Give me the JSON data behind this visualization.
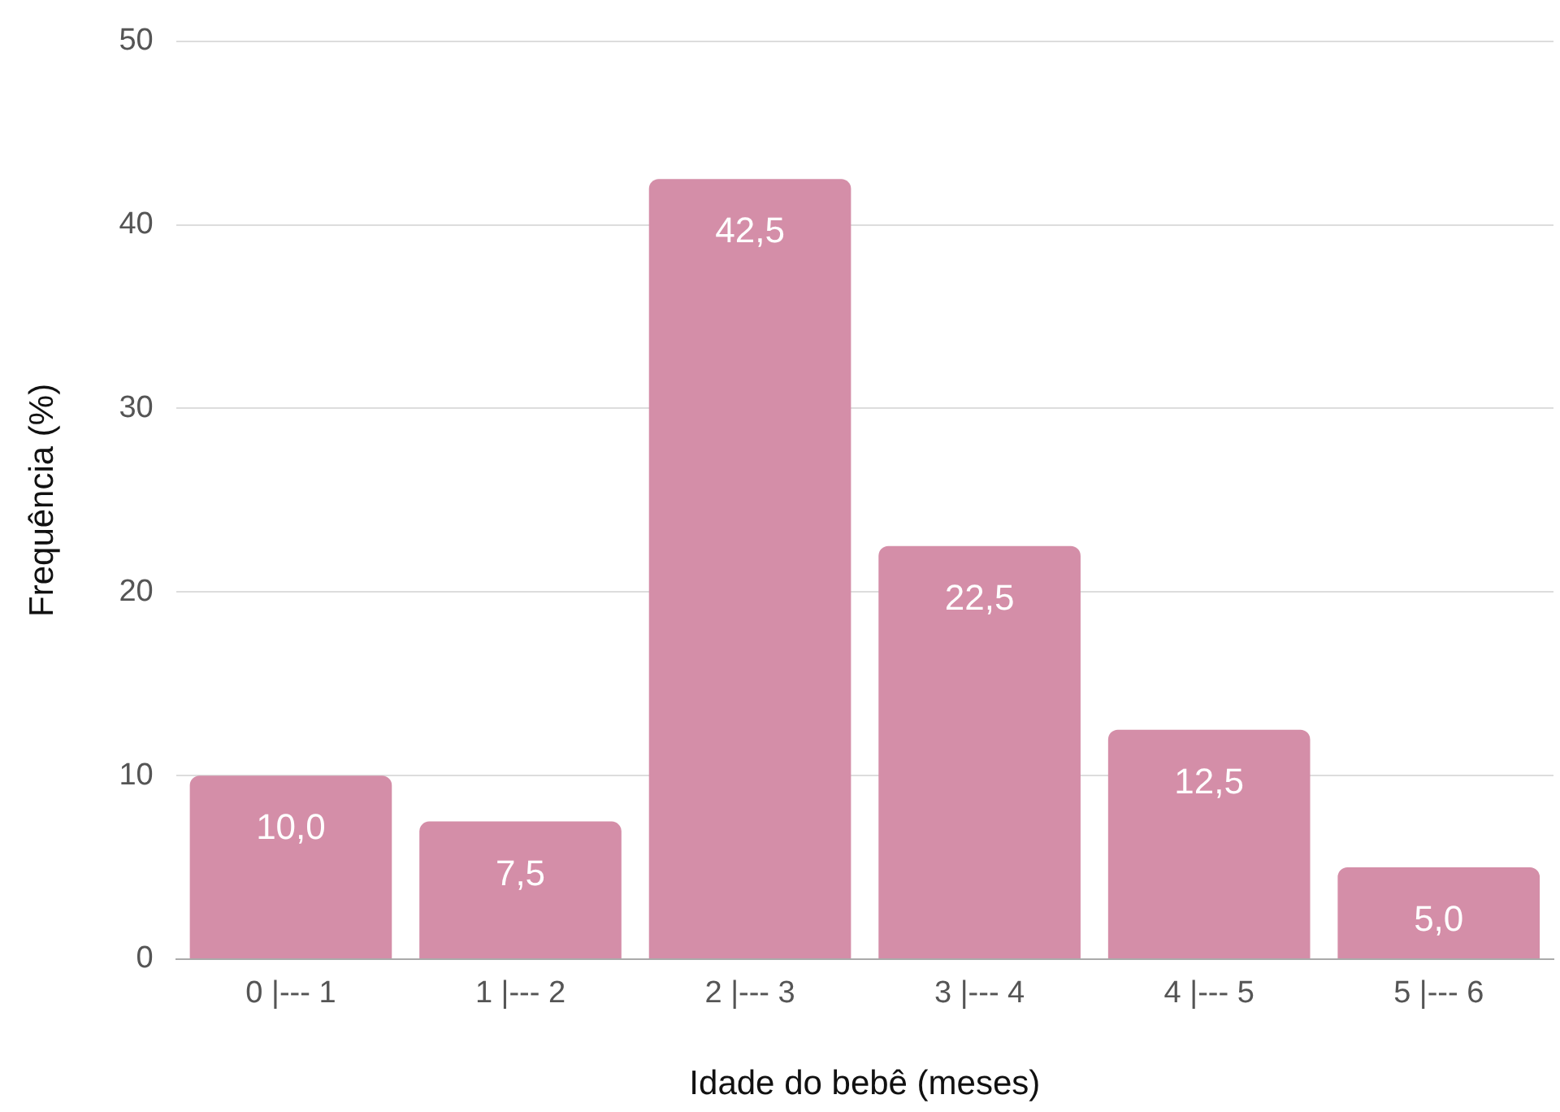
{
  "chart_data": {
    "type": "bar",
    "xlabel": "Idade do bebê (meses)",
    "ylabel": "Frequência (%)",
    "categories": [
      "0 |--- 1",
      "1 |--- 2",
      "2 |--- 3",
      "3 |--- 4",
      "4 |--- 5",
      "5 |--- 6"
    ],
    "values": [
      10,
      7.5,
      42.5,
      22.5,
      12.5,
      5
    ],
    "value_labels": [
      "10,0",
      "7,5",
      "42,5",
      "22,5",
      "12,5",
      "5,0"
    ],
    "color": "#d48ea8",
    "ylim": [
      0,
      50
    ],
    "yticks": [
      0,
      10,
      20,
      30,
      40,
      50
    ],
    "grid": "y"
  }
}
